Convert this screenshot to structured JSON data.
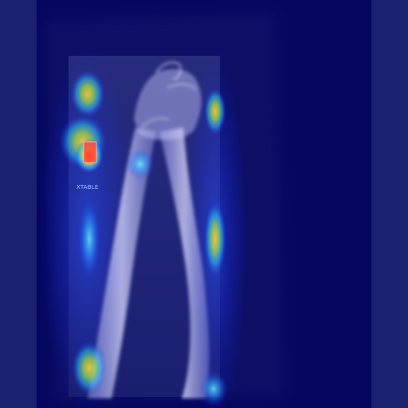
{
  "image": {
    "marker_label": "XTABLE",
    "colors": {
      "background": "#040660",
      "side_bands": "#1b2070",
      "heatmap_hot": "#ff2a1a",
      "heatmap_warm": "#ffd23a",
      "heatmap_cool": "#2ad0ff",
      "bone": "#dcdcff"
    }
  }
}
